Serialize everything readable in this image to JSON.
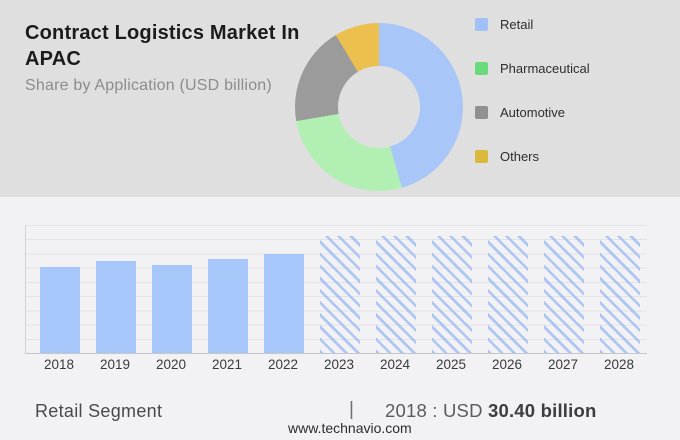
{
  "header": {
    "title_line1": "Contract Logistics Market In",
    "title_line2": "APAC",
    "subtitle": "Share by Application (USD billion)"
  },
  "footer": {
    "segment_label": "Retail Segment",
    "divider": "|",
    "value_prefix": "2018 : USD ",
    "value_bold": "30.40 billion",
    "website": "www.technavio.com"
  },
  "colors": {
    "top_panel_bg": "#dfdfdf",
    "bottom_panel_bg": "#f2f2f4",
    "bar_solid": "#a7c7fa",
    "bar_hatch": "#90b4f4",
    "gridline": "#e3e3e6",
    "axis": "#c6c6c9"
  },
  "chart_data": [
    {
      "type": "pie",
      "donut": true,
      "title": "Share by Application (USD billion)",
      "labels": [
        "Retail",
        "Pharmaceutical",
        "Automotive",
        "Others"
      ],
      "values_pct": [
        45.6,
        26.7,
        19.1,
        8.6
      ],
      "colors": [
        "#a8c7f8",
        "#b1efb3",
        "#9b9b9b",
        "#ecc04f"
      ],
      "legend_colors": [
        "#a0c0f6",
        "#69db7d",
        "#909090",
        "#d9b83b"
      ],
      "start_angle_deg": 0,
      "legend_position": "right"
    },
    {
      "type": "bar",
      "categories": [
        "2018",
        "2019",
        "2020",
        "2021",
        "2022",
        "2023",
        "2024",
        "2025",
        "2026",
        "2027",
        "2028"
      ],
      "values": [
        30.4,
        32.3,
        31.1,
        32.9,
        34.9,
        41,
        41,
        41,
        41,
        41,
        41
      ],
      "forecast_start_index": 5,
      "forecast_style": "hatched",
      "ylim": [
        0,
        45
      ],
      "gridline_step": 5,
      "grid": true,
      "xlabel": "",
      "ylabel": "",
      "note_label_2018": "2018 : USD 30.40 billion"
    }
  ]
}
